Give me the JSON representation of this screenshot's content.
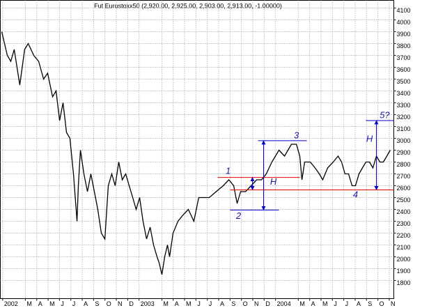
{
  "chart_data": {
    "type": "line",
    "title": "Fut Eurostoxx50 (2,920.00, 2,925.00, 2,903.00, 2,913.00, -1.00000)",
    "color": "#000000",
    "grid": true,
    "x": [
      -0.08,
      0.41,
      0.72,
      1.02,
      1.51,
      1.94,
      2.25,
      2.74,
      3.17,
      3.6,
      3.96,
      4.39,
      4.7,
      5.01,
      5.31,
      5.62,
      5.92,
      6.23,
      6.54,
      6.66,
      6.84,
      7.15,
      7.46,
      7.76,
      8.07,
      8.37,
      8.68,
      8.99,
      9.29,
      9.6,
      9.9,
      10.21,
      10.52,
      10.82,
      11.13,
      11.44,
      11.74,
      12.05,
      12.35,
      12.66,
      12.97,
      13.27,
      13.58,
      13.76,
      14.01,
      14.25,
      14.5,
      14.68,
      14.99,
      15.42,
      15.84,
      16.33,
      16.82,
      17.25,
      17.68,
      18.17,
      18.78,
      19.4,
      19.89,
      20.32,
      20.62,
      20.93,
      21.36,
      21.85,
      22.34,
      22.77,
      23.19,
      23.68,
      23.99,
      24.3,
      24.79,
      25.4,
      25.83,
      26.13,
      26.32,
      26.56,
      27.05,
      27.48,
      27.85,
      28.15,
      28.58,
      29.07,
      29.5,
      29.81,
      30.11,
      30.42,
      30.73,
      31.03,
      31.34,
      31.64,
      31.95,
      32.26,
      32.56,
      32.87,
      33.18,
      33.48,
      33.79,
      34.09
    ],
    "values": [
      3900,
      3700,
      3650,
      3750,
      3450,
      3750,
      3800,
      3700,
      3650,
      3500,
      3550,
      3350,
      3400,
      3150,
      3300,
      3050,
      3000,
      2700,
      2300,
      2600,
      2900,
      2700,
      2550,
      2700,
      2550,
      2400,
      2200,
      2150,
      2600,
      2700,
      2600,
      2800,
      2650,
      2700,
      2600,
      2500,
      2400,
      2500,
      2300,
      2150,
      2250,
      2100,
      2000,
      1950,
      1850,
      2000,
      2100,
      2000,
      2200,
      2300,
      2350,
      2400,
      2300,
      2500,
      2500,
      2500,
      2550,
      2600,
      2650,
      2600,
      2450,
      2550,
      2550,
      2600,
      2650,
      2650,
      2700,
      2800,
      2850,
      2900,
      2850,
      2950,
      2950,
      2850,
      2650,
      2800,
      2800,
      2750,
      2700,
      2650,
      2750,
      2800,
      2850,
      2800,
      2700,
      2700,
      2600,
      2600,
      2700,
      2750,
      2800,
      2800,
      2750,
      2850,
      2800,
      2800,
      2850,
      2900
    ],
    "xlim": [
      -0.2,
      34.4
    ],
    "ylim": [
      1647,
      4165
    ],
    "xticks": [
      {
        "value": 0,
        "label": "2002"
      },
      {
        "value": 2,
        "label": "M"
      },
      {
        "value": 3,
        "label": "A"
      },
      {
        "value": 4,
        "label": "M"
      },
      {
        "value": 5,
        "label": "J"
      },
      {
        "value": 6,
        "label": "J"
      },
      {
        "value": 7,
        "label": "A"
      },
      {
        "value": 8,
        "label": "S"
      },
      {
        "value": 9,
        "label": "O"
      },
      {
        "value": 10,
        "label": "N"
      },
      {
        "value": 11,
        "label": "D"
      },
      {
        "value": 12,
        "label": "2003"
      },
      {
        "value": 14,
        "label": "M"
      },
      {
        "value": 15,
        "label": "A"
      },
      {
        "value": 16,
        "label": "M"
      },
      {
        "value": 17,
        "label": "J"
      },
      {
        "value": 18,
        "label": "J"
      },
      {
        "value": 19,
        "label": "A"
      },
      {
        "value": 20,
        "label": "S"
      },
      {
        "value": 21,
        "label": "O"
      },
      {
        "value": 22,
        "label": "N"
      },
      {
        "value": 23,
        "label": "D"
      },
      {
        "value": 24,
        "label": "2004"
      },
      {
        "value": 26,
        "label": "M"
      },
      {
        "value": 27,
        "label": "A"
      },
      {
        "value": 28,
        "label": "M"
      },
      {
        "value": 29,
        "label": "J"
      },
      {
        "value": 30,
        "label": "J"
      },
      {
        "value": 31,
        "label": "A"
      },
      {
        "value": 32,
        "label": "S"
      },
      {
        "value": 33,
        "label": "O"
      },
      {
        "value": 34,
        "label": "N"
      }
    ],
    "yticks": [
      1800,
      1900,
      2000,
      2100,
      2200,
      2300,
      2400,
      2500,
      2600,
      2700,
      2800,
      2900,
      3000,
      3100,
      3200,
      3300,
      3400,
      3500,
      3600,
      3700,
      3800,
      3900,
      4000,
      4100
    ],
    "levels": [
      {
        "x": [
          18.91,
          26.13
        ],
        "y": 2670,
        "color": "#e00000"
      },
      {
        "x": [
          20.01,
          34.4
        ],
        "y": 2565,
        "color": "#e00000"
      },
      {
        "x": [
          22.46,
          26.75
        ],
        "y": 2980,
        "color": "#0000cc"
      },
      {
        "x": [
          20.01,
          24.3
        ],
        "y": 2395,
        "color": "#0000cc"
      },
      {
        "x": [
          31.95,
          34.4
        ],
        "y": 3150,
        "color": "#0000cc"
      }
    ],
    "arrows": [
      {
        "x": 22.95,
        "y": [
          2395,
          2980
        ],
        "color": "#0000cc"
      },
      {
        "x": 21.97,
        "y": [
          2565,
          2670
        ],
        "color": "#0000cc"
      },
      {
        "x": 32.87,
        "y": [
          2565,
          3150
        ],
        "color": "#0000cc"
      }
    ],
    "annotations": [
      {
        "text": "1",
        "x": 19.83,
        "y": 2720
      },
      {
        "text": "2",
        "x": 20.74,
        "y": 2340
      },
      {
        "text": "3",
        "x": 25.83,
        "y": 3020
      },
      {
        "text": "4",
        "x": 31.03,
        "y": 2520
      },
      {
        "text": "5?",
        "x": 33.6,
        "y": 3190
      },
      {
        "text": "H",
        "x": 23.81,
        "y": 2630
      },
      {
        "text": "H",
        "x": 32.26,
        "y": 2990
      }
    ],
    "annotation_color": "#1a1aa0"
  }
}
